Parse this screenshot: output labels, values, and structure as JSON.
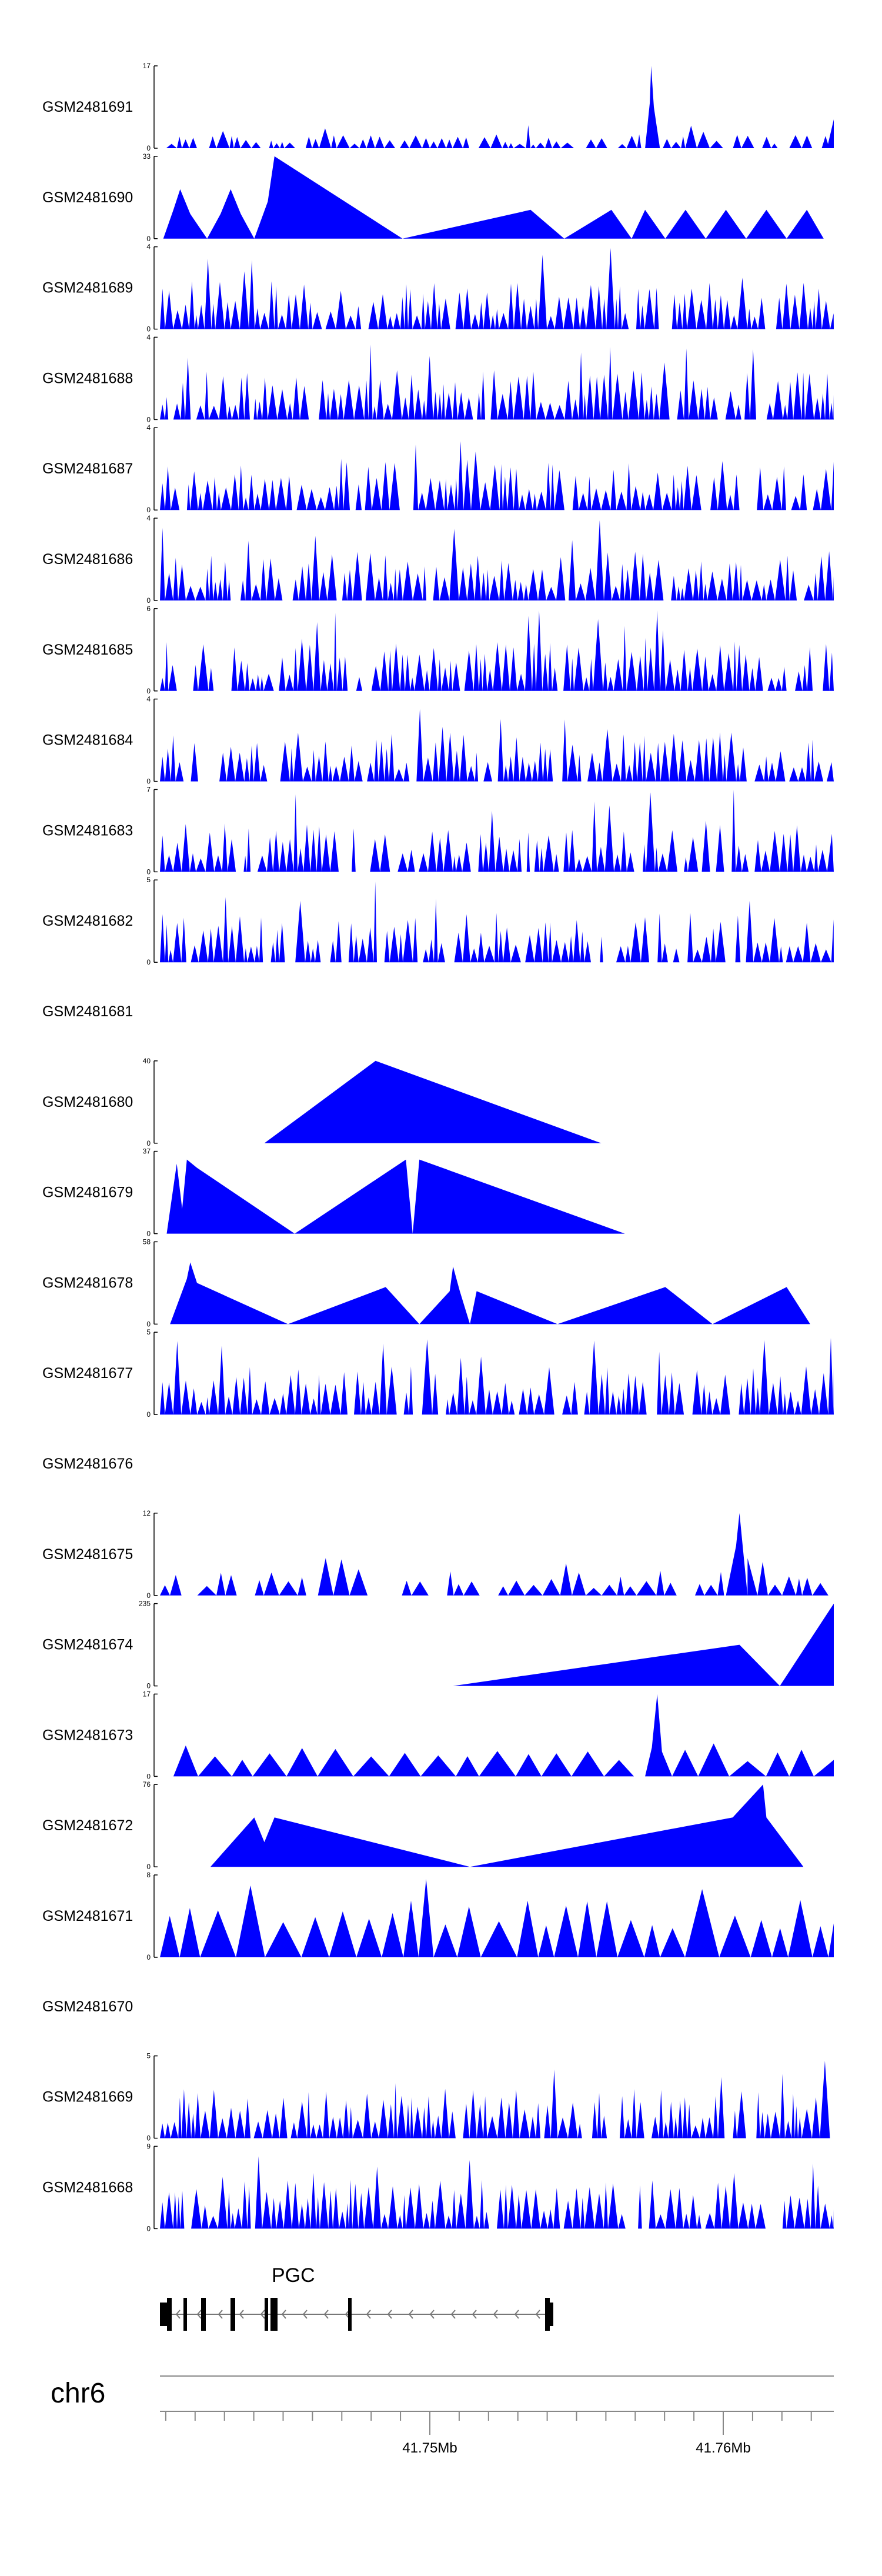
{
  "chart_data": {
    "type": "area",
    "fill_color": "#0000ff",
    "tracks": [
      {
        "name": "GSM2481691",
        "ymax": 17
      },
      {
        "name": "GSM2481690",
        "ymax": 33
      },
      {
        "name": "GSM2481689",
        "ymax": 4
      },
      {
        "name": "GSM2481688",
        "ymax": 4
      },
      {
        "name": "GSM2481687",
        "ymax": 4
      },
      {
        "name": "GSM2481686",
        "ymax": 4
      },
      {
        "name": "GSM2481685",
        "ymax": 6
      },
      {
        "name": "GSM2481684",
        "ymax": 4
      },
      {
        "name": "GSM2481683",
        "ymax": 7
      },
      {
        "name": "GSM2481682",
        "ymax": 5
      },
      {
        "name": "GSM2481681",
        "ymax": null
      },
      {
        "name": "GSM2481680",
        "ymax": 40
      },
      {
        "name": "GSM2481679",
        "ymax": 37
      },
      {
        "name": "GSM2481678",
        "ymax": 58
      },
      {
        "name": "GSM2481677",
        "ymax": 5
      },
      {
        "name": "GSM2481676",
        "ymax": null
      },
      {
        "name": "GSM2481675",
        "ymax": 12
      },
      {
        "name": "GSM2481674",
        "ymax": 235
      },
      {
        "name": "GSM2481673",
        "ymax": 17
      },
      {
        "name": "GSM2481672",
        "ymax": 76
      },
      {
        "name": "GSM2481671",
        "ymax": 8
      },
      {
        "name": "GSM2481670",
        "ymax": null
      },
      {
        "name": "GSM2481669",
        "ymax": 5
      },
      {
        "name": "GSM2481668",
        "ymax": 9
      }
    ],
    "gene": {
      "name": "PGC",
      "strand": "-"
    },
    "chromosome": "chr6",
    "xaxis": {
      "ticks": [
        "41.75Mb",
        "41.76Mb"
      ],
      "tick_values_mb": [
        41.75,
        41.76
      ]
    }
  }
}
